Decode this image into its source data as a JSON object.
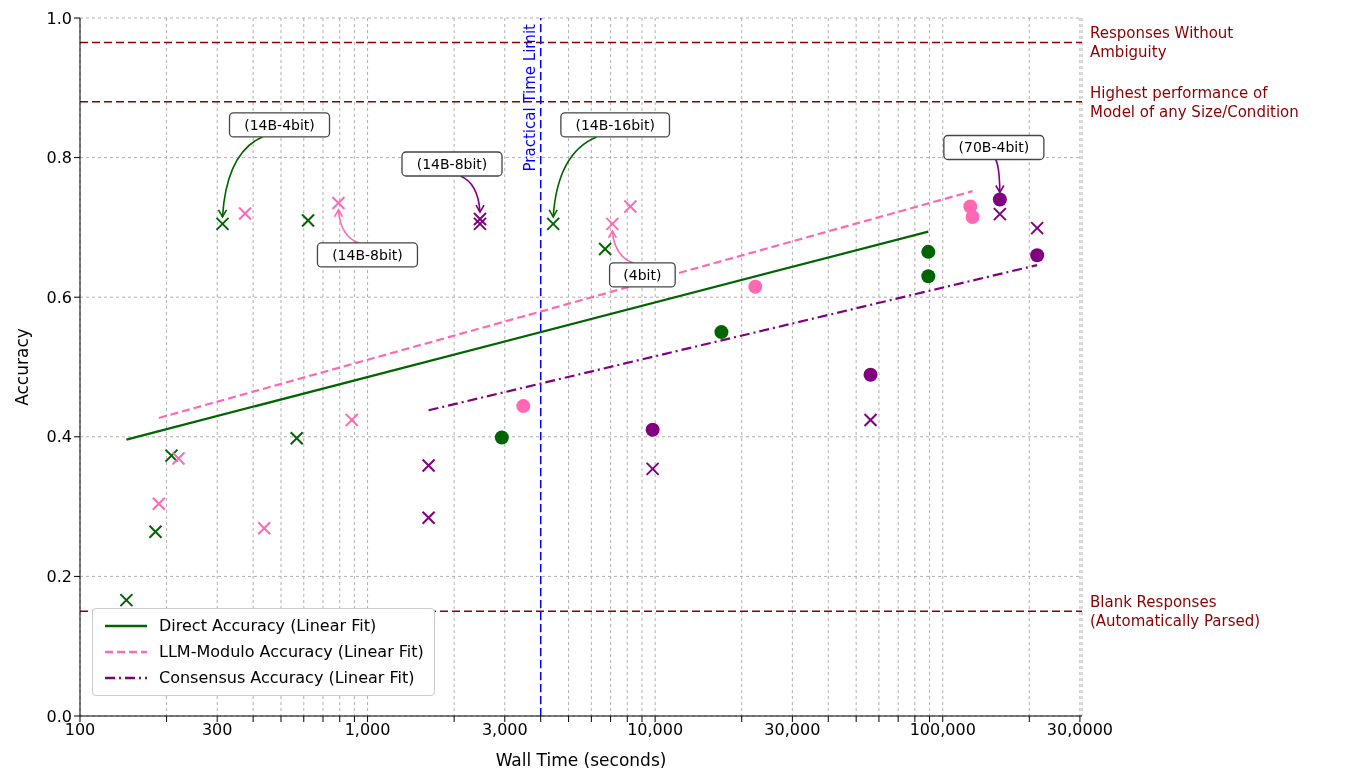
{
  "chart_data": {
    "type": "scatter",
    "xlabel": "Wall Time (seconds)",
    "ylabel": "Accuracy",
    "log": "x",
    "grid": true,
    "legend": "bottom left",
    "xlim": [
      100,
      305000
    ],
    "ylim": [
      0,
      1
    ],
    "xticks": [
      100,
      {
        "value": 200,
        "label": null
      },
      300,
      {
        "value": 400,
        "label": null
      },
      {
        "value": 500,
        "label": null
      },
      {
        "value": 600,
        "label": null
      },
      {
        "value": 700,
        "label": null
      },
      {
        "value": 800,
        "label": null
      },
      {
        "value": 900,
        "label": null
      },
      {
        "value": 1000,
        "label": "1,000"
      },
      {
        "value": 2000,
        "label": null
      },
      {
        "value": 3000,
        "label": "3,000"
      },
      {
        "value": 4000,
        "label": null
      },
      {
        "value": 5000,
        "label": null
      },
      {
        "value": 6000,
        "label": null
      },
      {
        "value": 7000,
        "label": null
      },
      {
        "value": 8000,
        "label": null
      },
      {
        "value": 9000,
        "label": null
      },
      {
        "value": 10000,
        "label": "10,000"
      },
      {
        "value": 20000,
        "label": null
      },
      {
        "value": 30000,
        "label": "30,000"
      },
      {
        "value": 40000,
        "label": null
      },
      {
        "value": 50000,
        "label": null
      },
      {
        "value": 60000,
        "label": null
      },
      {
        "value": 70000,
        "label": null
      },
      {
        "value": 80000,
        "label": null
      },
      {
        "value": 90000,
        "label": null
      },
      {
        "value": 100000,
        "label": "100,000"
      },
      {
        "value": 200000,
        "label": null
      },
      {
        "value": 300000,
        "label": "30,0000"
      }
    ],
    "yticks": [
      {
        "value": 0,
        "label": "0.0"
      },
      0.2,
      0.4,
      0.6,
      0.8,
      {
        "value": 1,
        "label": "1.0"
      }
    ],
    "series": [
      {
        "type": "scatter",
        "marker": "cross",
        "color": "#006400",
        "x": [
          145,
          183,
          208,
          313,
          567,
          621,
          4420,
          6700
        ],
        "values": [
          0.166,
          0.264,
          0.373,
          0.705,
          0.398,
          0.71,
          0.705,
          0.669
        ]
      },
      {
        "type": "scatter",
        "marker": "circle",
        "color": "#006400",
        "x": [
          2930,
          17000,
          89100,
          89100
        ],
        "values": [
          0.399,
          0.55,
          0.665,
          0.63
        ]
      },
      {
        "type": "scatter",
        "marker": "cross",
        "color": "#ff69b4",
        "x": [
          188,
          220,
          375,
          437,
          792,
          881,
          7100,
          8200
        ],
        "values": [
          0.304,
          0.369,
          0.72,
          0.269,
          0.735,
          0.424,
          0.705,
          0.73
        ]
      },
      {
        "type": "scatter",
        "marker": "circle",
        "color": "#ff69b4",
        "x": [
          3480,
          22300,
          124700,
          127000
        ],
        "values": [
          0.444,
          0.615,
          0.73,
          0.715
        ]
      },
      {
        "type": "scatter",
        "marker": "cross",
        "color": "#800080",
        "x": [
          1630,
          1630,
          2460,
          2460,
          9800,
          56100,
          158000,
          213000
        ],
        "values": [
          0.359,
          0.284,
          0.712,
          0.705,
          0.354,
          0.424,
          0.719,
          0.699
        ]
      },
      {
        "type": "scatter",
        "marker": "circle",
        "color": "#800080",
        "x": [
          9800,
          56100,
          158000,
          213000
        ],
        "values": [
          0.41,
          0.489,
          0.74,
          0.66
        ]
      },
      {
        "type": "line",
        "name": "Direct Accuracy (Linear Fit)",
        "color": "#006400",
        "line_style": "solid",
        "x": [
          145,
          89100
        ],
        "values": [
          0.396,
          0.694
        ]
      },
      {
        "type": "line",
        "name": "LLM-Modulo Accuracy (Linear Fit)",
        "color": "#ff69b4",
        "line_style": "dashed",
        "x": [
          188,
          127000
        ],
        "values": [
          0.427,
          0.752
        ]
      },
      {
        "type": "line",
        "name": "Consensus Accuracy (Linear Fit)",
        "color": "#800080",
        "line_style": "dashdot",
        "x": [
          1630,
          213000
        ],
        "values": [
          0.438,
          0.646
        ]
      }
    ],
    "ref_lines": [
      {
        "axis": "y",
        "value": 0.965,
        "label": "Responses Without\nAmbiguity",
        "color": "#8b0000",
        "line_style": "dashed"
      },
      {
        "axis": "y",
        "value": 0.88,
        "label": "Highest performance of\nModel of any Size/Condition",
        "color": "#8b0000",
        "line_style": "dashed"
      },
      {
        "axis": "y",
        "value": 0.15,
        "label": "Blank Responses\n(Automatically Parsed)",
        "color": "#8b0000",
        "line_style": "dashed"
      },
      {
        "axis": "x",
        "value": 4000,
        "label": "Practical Time Limit",
        "color": "#0000ff",
        "line_style": "dashed"
      }
    ],
    "annotations": [
      {
        "text": "(14B-4bit)",
        "x": 313,
        "y": 0.705
      },
      {
        "text": "(14B-8bit)",
        "x": 2460,
        "y": 0.712
      },
      {
        "text": "(14B-16bit)",
        "x": 4420,
        "y": 0.705
      },
      {
        "text": "(14B-8bit)",
        "x": 792,
        "y": 0.735
      },
      {
        "text": "(4bit)",
        "x": 7100,
        "y": 0.705
      },
      {
        "text": "(70B-4bit)",
        "x": 158000,
        "y": 0.74
      }
    ]
  }
}
